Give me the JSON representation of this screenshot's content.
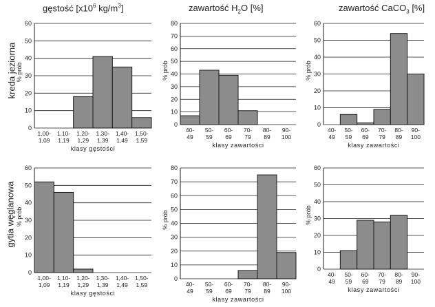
{
  "column_titles": {
    "density": {
      "prefix": "gęstość [x10",
      "sup": "6",
      "suffix": " kg/m",
      "sup2": "3",
      "end": "]"
    },
    "water": {
      "prefix": "zawartość H",
      "sub": "2",
      "suffix": "O [%]"
    },
    "carbonate": {
      "prefix": "zawartość CaCO",
      "sub": "3",
      "suffix": " [%]"
    }
  },
  "row_labels": [
    "kreda jeziorna",
    "gytia węglanowa"
  ],
  "colors": {
    "bar_fill": "#8c8c8c",
    "bar_stroke": "#1a1a1a",
    "grid": "#1a1a1a"
  },
  "chart_data": [
    {
      "type": "bar",
      "row": 0,
      "col": 0,
      "categories": [
        [
          "1,00-",
          "1,09"
        ],
        [
          "1,10-",
          "1,19"
        ],
        [
          "1,20-",
          "1,29"
        ],
        [
          "1,30-",
          "1,39"
        ],
        [
          "1,40-",
          "1,49"
        ],
        [
          "1,50-",
          "1,59"
        ]
      ],
      "values": [
        0,
        0,
        18,
        41,
        35,
        6
      ],
      "ylim": [
        0,
        60
      ],
      "yticks": [
        0,
        10,
        20,
        30,
        40,
        50,
        60
      ],
      "xlabel": "klasy gęstości",
      "ylabel": "% prób"
    },
    {
      "type": "bar",
      "row": 0,
      "col": 1,
      "categories": [
        [
          "40-",
          "49"
        ],
        [
          "50-",
          "59"
        ],
        [
          "60-",
          "69"
        ],
        [
          "70-",
          "79"
        ],
        [
          "80-",
          "89"
        ],
        [
          "90-",
          "100"
        ]
      ],
      "values": [
        7,
        43,
        39,
        11,
        0,
        0
      ],
      "ylim": [
        0,
        80
      ],
      "yticks": [
        0,
        10,
        20,
        30,
        40,
        50,
        60,
        70,
        80
      ],
      "xlabel": "klasy zawartości",
      "ylabel": "% prób"
    },
    {
      "type": "bar",
      "row": 0,
      "col": 2,
      "categories": [
        [
          "40-",
          "49"
        ],
        [
          "50-",
          "59"
        ],
        [
          "60-",
          "69"
        ],
        [
          "70-",
          "79"
        ],
        [
          "80-",
          "89"
        ],
        [
          "90-",
          "100"
        ]
      ],
      "values": [
        0,
        6,
        1,
        9,
        54,
        30
      ],
      "ylim": [
        0,
        60
      ],
      "yticks": [
        0,
        10,
        20,
        30,
        40,
        50,
        60
      ],
      "xlabel": "klasy zawartości",
      "ylabel": "% prób"
    },
    {
      "type": "bar",
      "row": 1,
      "col": 0,
      "categories": [
        [
          "1,00-",
          "1,09"
        ],
        [
          "1,10-",
          "1,19"
        ],
        [
          "1,20-",
          "1,29"
        ],
        [
          "1,30-",
          "1,39"
        ],
        [
          "1,40-",
          "1,49"
        ],
        [
          "1,50-",
          "1,59"
        ]
      ],
      "values": [
        52,
        46,
        2,
        0,
        0,
        0
      ],
      "ylim": [
        0,
        60
      ],
      "yticks": [
        0,
        10,
        20,
        30,
        40,
        50,
        60
      ],
      "xlabel": "klasy gęstości",
      "ylabel": "% prób"
    },
    {
      "type": "bar",
      "row": 1,
      "col": 1,
      "categories": [
        [
          "40-",
          "49"
        ],
        [
          "50-",
          "59"
        ],
        [
          "60-",
          "69"
        ],
        [
          "70-",
          "79"
        ],
        [
          "80-",
          "89"
        ],
        [
          "90-",
          "100"
        ]
      ],
      "values": [
        0,
        0,
        0,
        6,
        75,
        19
      ],
      "ylim": [
        0,
        80
      ],
      "yticks": [
        0,
        10,
        20,
        30,
        40,
        50,
        60,
        70,
        80
      ],
      "xlabel": "klasy zawartości",
      "ylabel": "% prób"
    },
    {
      "type": "bar",
      "row": 1,
      "col": 2,
      "categories": [
        [
          "40-",
          "49"
        ],
        [
          "50-",
          "59"
        ],
        [
          "60-",
          "69"
        ],
        [
          "70-",
          "79"
        ],
        [
          "80-",
          "89"
        ],
        [
          "90-",
          "100"
        ]
      ],
      "values": [
        0,
        11,
        29,
        28,
        32,
        0
      ],
      "ylim": [
        0,
        60
      ],
      "yticks": [
        0,
        10,
        20,
        30,
        40,
        50,
        60
      ],
      "xlabel": "klasy zawartości",
      "ylabel": "% prób"
    }
  ]
}
